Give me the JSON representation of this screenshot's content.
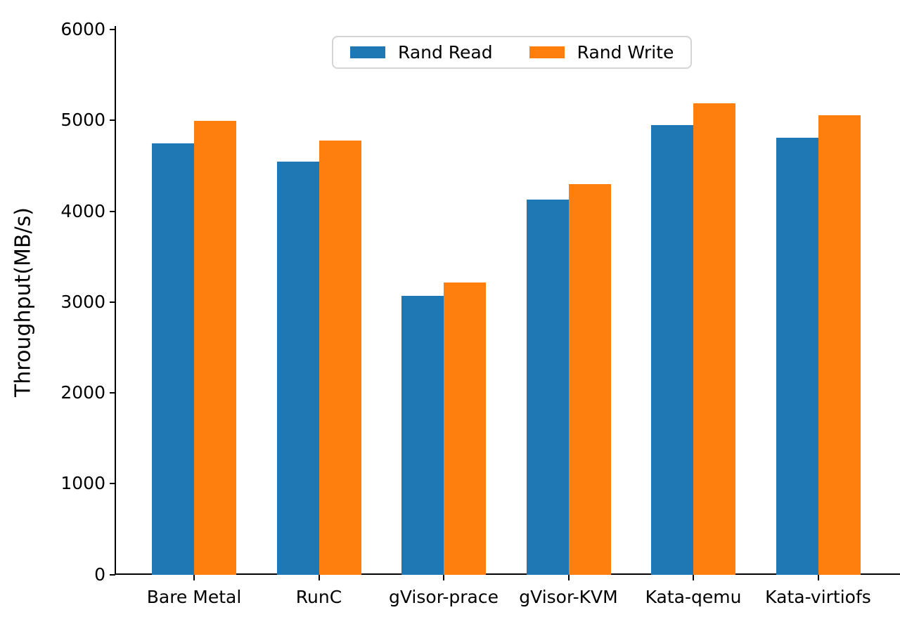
{
  "figure": {
    "background": "#ffffff",
    "text_color": "#000000"
  },
  "chart_data": {
    "type": "bar",
    "title": "",
    "xlabel": "",
    "ylabel": "Throughput(MB/s)",
    "categories": [
      "Bare Metal",
      "RunC",
      "gVisor-prace",
      "gVisor-KVM",
      "Kata-qemu",
      "Kata-virtiofs"
    ],
    "series": [
      {
        "name": "Rand Read",
        "color": "#1f77b4",
        "values": [
          4750,
          4550,
          3070,
          4130,
          4950,
          4810
        ]
      },
      {
        "name": "Rand Write",
        "color": "#ff7f0e",
        "values": [
          5000,
          4780,
          3220,
          4300,
          5190,
          5060
        ]
      }
    ],
    "ylim": [
      0,
      6000
    ],
    "yticks": [
      0,
      1000,
      2000,
      3000,
      4000,
      5000,
      6000
    ],
    "grid": false,
    "legend": {
      "position": "upper center",
      "labels": [
        "Rand Read",
        "Rand Write"
      ]
    }
  }
}
